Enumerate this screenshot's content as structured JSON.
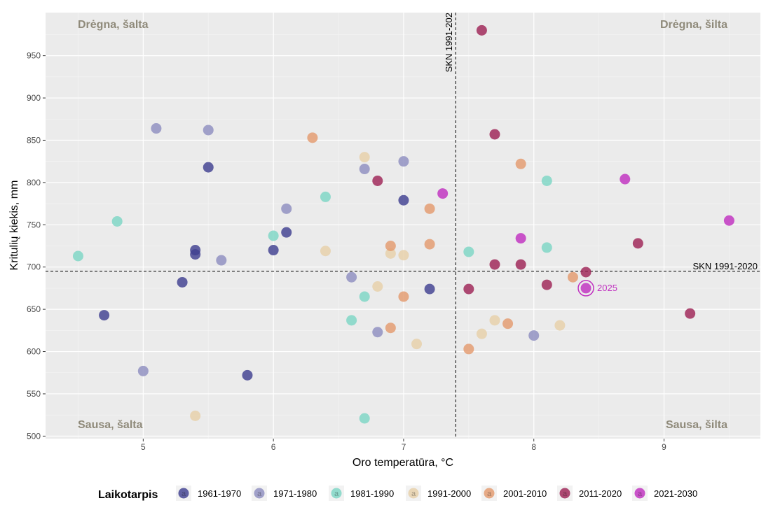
{
  "chart_data": {
    "type": "scatter",
    "xlabel": "Oro temperatūra, °C",
    "ylabel": "Kritulių kiekis, mm",
    "xlim": [
      4.25,
      9.74
    ],
    "ylim": [
      497,
      1001
    ],
    "xticks": [
      5,
      6,
      7,
      8,
      9
    ],
    "yticks": [
      500,
      550,
      600,
      650,
      700,
      750,
      800,
      850,
      900,
      950
    ],
    "grid": true,
    "legend_title": "Laikotarpis",
    "legend_position": "bottom",
    "legend_glyph": "a",
    "quadrant_labels": {
      "top_left": "Drėgna, šalta",
      "top_right": "Drėgna, šilta",
      "bottom_left": "Sausa, šalta",
      "bottom_right": "Sausa, šilta"
    },
    "reference_lines": {
      "vertical": {
        "x": 7.4,
        "label": "SKN 1991-202"
      },
      "horizontal": {
        "y": 695,
        "label": "SKN 1991-2020"
      }
    },
    "highlight": {
      "x": 8.4,
      "y": 675,
      "label": "2025",
      "color": "#c030c0"
    },
    "series": [
      {
        "name": "1961-1970",
        "color": "#3f3f90",
        "points": [
          [
            4.7,
            643
          ],
          [
            5.4,
            720
          ],
          [
            5.4,
            715
          ],
          [
            5.3,
            682
          ],
          [
            5.5,
            818
          ],
          [
            5.8,
            572
          ],
          [
            6.0,
            720
          ],
          [
            6.1,
            741
          ],
          [
            7.0,
            779
          ],
          [
            7.2,
            674
          ]
        ]
      },
      {
        "name": "1971-1980",
        "color": "#8e8ec0",
        "points": [
          [
            5.1,
            864
          ],
          [
            5.5,
            862
          ],
          [
            5.0,
            577
          ],
          [
            5.6,
            708
          ],
          [
            6.1,
            769
          ],
          [
            6.6,
            688
          ],
          [
            6.7,
            816
          ],
          [
            7.0,
            825
          ],
          [
            6.8,
            623
          ],
          [
            8.0,
            619
          ]
        ]
      },
      {
        "name": "1981-1990",
        "color": "#7dd6c4",
        "points": [
          [
            4.5,
            713
          ],
          [
            4.8,
            754
          ],
          [
            6.0,
            737
          ],
          [
            6.4,
            783
          ],
          [
            6.6,
            637
          ],
          [
            6.7,
            665
          ],
          [
            6.7,
            521
          ],
          [
            7.5,
            718
          ],
          [
            8.1,
            802
          ],
          [
            8.1,
            723
          ]
        ]
      },
      {
        "name": "1991-2000",
        "color": "#e6d0a8",
        "points": [
          [
            5.4,
            524
          ],
          [
            6.4,
            719
          ],
          [
            6.7,
            830
          ],
          [
            6.9,
            716
          ],
          [
            7.0,
            714
          ],
          [
            6.8,
            677
          ],
          [
            7.1,
            609
          ],
          [
            7.6,
            621
          ],
          [
            7.7,
            637
          ],
          [
            8.2,
            631
          ]
        ]
      },
      {
        "name": "2001-2010",
        "color": "#e39a6e",
        "points": [
          [
            6.3,
            853
          ],
          [
            6.9,
            725
          ],
          [
            7.2,
            769
          ],
          [
            7.2,
            727
          ],
          [
            7.0,
            665
          ],
          [
            6.9,
            628
          ],
          [
            7.5,
            603
          ],
          [
            7.9,
            822
          ],
          [
            7.8,
            633
          ],
          [
            8.3,
            688
          ]
        ]
      },
      {
        "name": "2011-2020",
        "color": "#9e2356",
        "points": [
          [
            7.6,
            980
          ],
          [
            7.7,
            857
          ],
          [
            6.8,
            802
          ],
          [
            7.5,
            674
          ],
          [
            7.7,
            703
          ],
          [
            7.9,
            703
          ],
          [
            8.1,
            679
          ],
          [
            8.4,
            694
          ],
          [
            8.8,
            728
          ],
          [
            9.2,
            645
          ]
        ]
      },
      {
        "name": "2021-2030",
        "color": "#c030c0",
        "points": [
          [
            7.3,
            787
          ],
          [
            7.9,
            734
          ],
          [
            8.7,
            804
          ],
          [
            9.5,
            755
          ],
          [
            8.4,
            675
          ]
        ]
      }
    ]
  }
}
